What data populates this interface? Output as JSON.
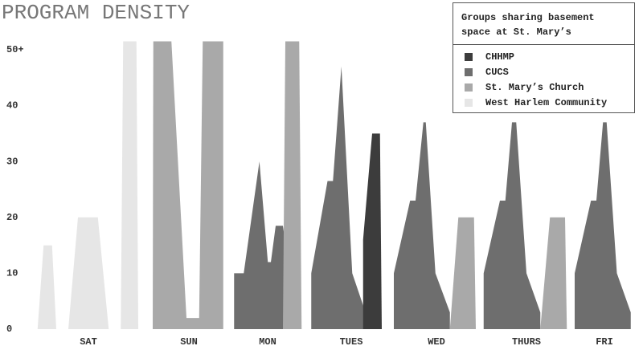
{
  "chart_data": {
    "type": "area",
    "title": "PROGRAM DENSITY",
    "legend_title": "Groups sharing basement space at St. Mary’s",
    "legend": "top-right",
    "categories": [
      "SAT",
      "SUN",
      "MON",
      "TUES",
      "WED",
      "THURS",
      "FRI"
    ],
    "series": [
      {
        "name": "CHHMP",
        "color": "#3c3c3c"
      },
      {
        "name": "CUCS",
        "color": "#6e6e6e"
      },
      {
        "name": "St. Mary’s Church",
        "color": "#a9a9a9"
      },
      {
        "name": "West Harlem Community",
        "color": "#e6e6e6"
      }
    ],
    "shapes": [
      {
        "series": 3,
        "x": [
          0.9,
          1.9,
          3.3,
          4
        ],
        "values": [
          0,
          15,
          15,
          0
        ]
      },
      {
        "series": 3,
        "x": [
          6,
          7.6,
          10.9,
          12.7
        ],
        "values": [
          0,
          20,
          20,
          0
        ]
      },
      {
        "series": 3,
        "x": [
          14.7,
          15.1,
          17.3,
          17.6
        ],
        "values": [
          0,
          51.5,
          51.5,
          0
        ]
      },
      {
        "series": 2,
        "x": [
          20,
          20.1,
          23.1,
          25.6,
          27.7,
          28.3,
          31.7,
          31.7
        ],
        "values": [
          0,
          51.5,
          51.5,
          2,
          2,
          51.5,
          51.5,
          0
        ]
      },
      {
        "series": 1,
        "x": [
          33.5,
          33.5,
          35.1,
          37.7,
          39.1,
          39.6,
          40.4,
          41.6,
          42.7,
          42.7
        ],
        "values": [
          0,
          10,
          10,
          30,
          12,
          12,
          18.5,
          18.5,
          10,
          0
        ]
      },
      {
        "series": 2,
        "x": [
          41.6,
          42,
          44.3,
          44.7
        ],
        "values": [
          0,
          51.5,
          51.5,
          0
        ]
      },
      {
        "series": 1,
        "x": [
          46.3,
          46.3,
          49,
          49.9,
          51.3,
          53.1,
          55.3,
          55.3
        ],
        "values": [
          0,
          10,
          26.5,
          26.5,
          47,
          10,
          3,
          0
        ]
      },
      {
        "series": 0,
        "x": [
          54.9,
          54.9,
          56.4,
          57.7,
          58
        ],
        "values": [
          0,
          16,
          35,
          35,
          0
        ]
      },
      {
        "series": 1,
        "x": [
          60,
          60,
          62.7,
          63.6,
          64.9,
          65.3,
          66.9,
          69.3,
          69.3
        ],
        "values": [
          0,
          10,
          23,
          23,
          37,
          37,
          10,
          3,
          0
        ]
      },
      {
        "series": 2,
        "x": [
          69.3,
          70.7,
          73.3,
          73.6
        ],
        "values": [
          0,
          20,
          20,
          0
        ]
      },
      {
        "series": 1,
        "x": [
          74.9,
          74.9,
          77.6,
          78.5,
          79.6,
          80.3,
          82,
          84.3,
          84.3
        ],
        "values": [
          0,
          10,
          23,
          23,
          37,
          37,
          10,
          3,
          0
        ]
      },
      {
        "series": 2,
        "x": [
          84.3,
          85.9,
          88.4,
          88.7
        ],
        "values": [
          0,
          20,
          20,
          0
        ]
      },
      {
        "series": 1,
        "x": [
          90,
          90,
          92.7,
          93.6,
          94.7,
          95.3,
          97,
          99.3,
          99.3
        ],
        "values": [
          0,
          10,
          23,
          23,
          37,
          37,
          10,
          3,
          0
        ]
      }
    ],
    "xlim": [
      0,
      100
    ],
    "ylim": [
      0,
      52
    ],
    "yticks": [
      0,
      10,
      20,
      30,
      40,
      {
        "value": 50,
        "label": "50+"
      }
    ]
  }
}
